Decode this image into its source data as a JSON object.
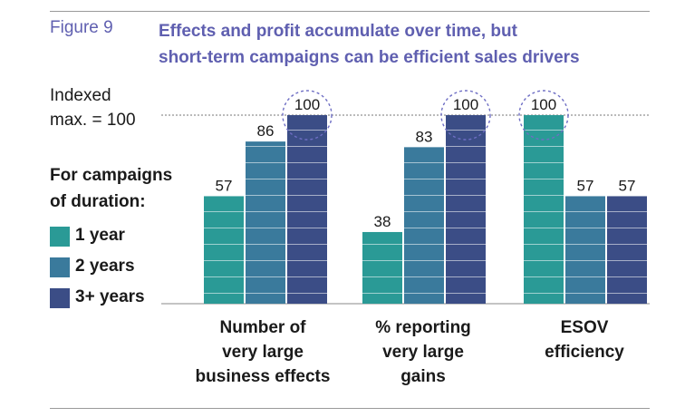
{
  "figure": {
    "label": "Figure 9",
    "title_lines": [
      "Effects and profit accumulate over time, but",
      "short-term campaigns can be efficient sales drivers"
    ]
  },
  "index_note": {
    "lines": [
      "Indexed",
      "max. = 100"
    ]
  },
  "legend": {
    "title_lines": [
      "For campaigns",
      "of duration:"
    ],
    "items": [
      {
        "label": "1 year",
        "color": "#2a9a96"
      },
      {
        "label": "2 years",
        "color": "#3a7a9c"
      },
      {
        "label": "3+ years",
        "color": "#3b4d86"
      }
    ]
  },
  "categories_display": [
    [
      "Number of",
      "very large",
      "business effects"
    ],
    [
      "% reporting",
      "very large",
      "gains"
    ],
    [
      "ESOV",
      "efficiency"
    ]
  ],
  "chart_data": {
    "type": "bar",
    "categories": [
      "Number of very large business effects",
      "% reporting very large gains",
      "ESOV efficiency"
    ],
    "series": [
      {
        "name": "1 year",
        "values": [
          57,
          38,
          100
        ]
      },
      {
        "name": "2 years",
        "values": [
          86,
          83,
          57
        ]
      },
      {
        "name": "3+ years",
        "values": [
          100,
          100,
          57
        ]
      }
    ],
    "ylim": [
      0,
      100
    ],
    "reference_line": 100,
    "grid": false,
    "legend_position": "left",
    "highlighted_max_values": true
  }
}
